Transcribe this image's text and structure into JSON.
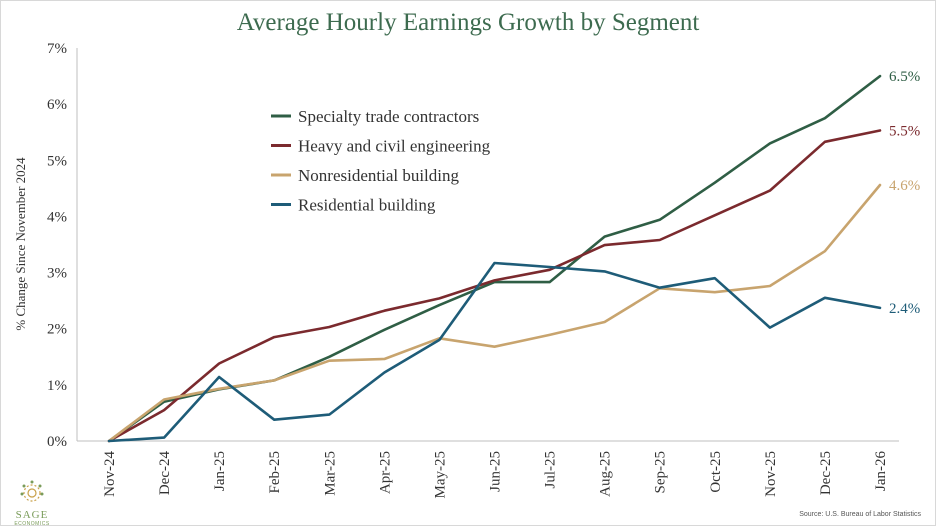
{
  "chart_data": {
    "type": "line",
    "title": "Average Hourly Earnings Growth by Segment",
    "ylabel": "% Change Since November 2024",
    "xlabel": "",
    "ylim": [
      0,
      7
    ],
    "yticks": [
      0,
      1,
      2,
      3,
      4,
      5,
      6,
      7
    ],
    "ytick_labels": [
      "0%",
      "1%",
      "2%",
      "3%",
      "4%",
      "5%",
      "6%",
      "7%"
    ],
    "grid": false,
    "legend_position": "top-left",
    "categories": [
      "Nov-24",
      "Dec-24",
      "Jan-25",
      "Feb-25",
      "Mar-25",
      "Apr-25",
      "May-25",
      "Jun-25",
      "Jul-25",
      "Aug-25",
      "Sep-25",
      "Oct-25",
      "Nov-25",
      "Dec-25",
      "Jan-26"
    ],
    "series": [
      {
        "name": "Specialty trade contractors",
        "color": "#2f5e45",
        "end_label": "6.5%",
        "values": [
          0,
          0.7,
          0.92,
          1.08,
          1.5,
          1.98,
          2.42,
          2.83,
          2.83,
          3.64,
          3.94,
          4.6,
          5.3,
          5.75,
          6.5
        ]
      },
      {
        "name": "Heavy and civil engineering",
        "color": "#7b2a2e",
        "end_label": "5.5%",
        "values": [
          0,
          0.55,
          1.38,
          1.85,
          2.03,
          2.32,
          2.54,
          2.86,
          3.05,
          3.49,
          3.58,
          4.02,
          4.46,
          5.33,
          5.53
        ]
      },
      {
        "name": "Nonresidential building",
        "color": "#c8a46e",
        "end_label": "4.6%",
        "values": [
          0,
          0.74,
          0.93,
          1.08,
          1.43,
          1.46,
          1.83,
          1.68,
          1.89,
          2.12,
          2.72,
          2.65,
          2.76,
          3.38,
          4.56
        ]
      },
      {
        "name": "Residential building",
        "color": "#1e5c78",
        "end_label": "2.4%",
        "values": [
          0,
          0.06,
          1.14,
          0.38,
          0.47,
          1.22,
          1.8,
          3.17,
          3.1,
          3.02,
          2.73,
          2.9,
          2.02,
          2.55,
          2.37
        ]
      }
    ]
  },
  "branding": {
    "logo_name": "SAGE",
    "logo_sub": "ECONOMICS",
    "logo_color": "#7a9c5a"
  },
  "footer": {
    "source": "Source: U.S. Bureau of Labor Statistics"
  }
}
